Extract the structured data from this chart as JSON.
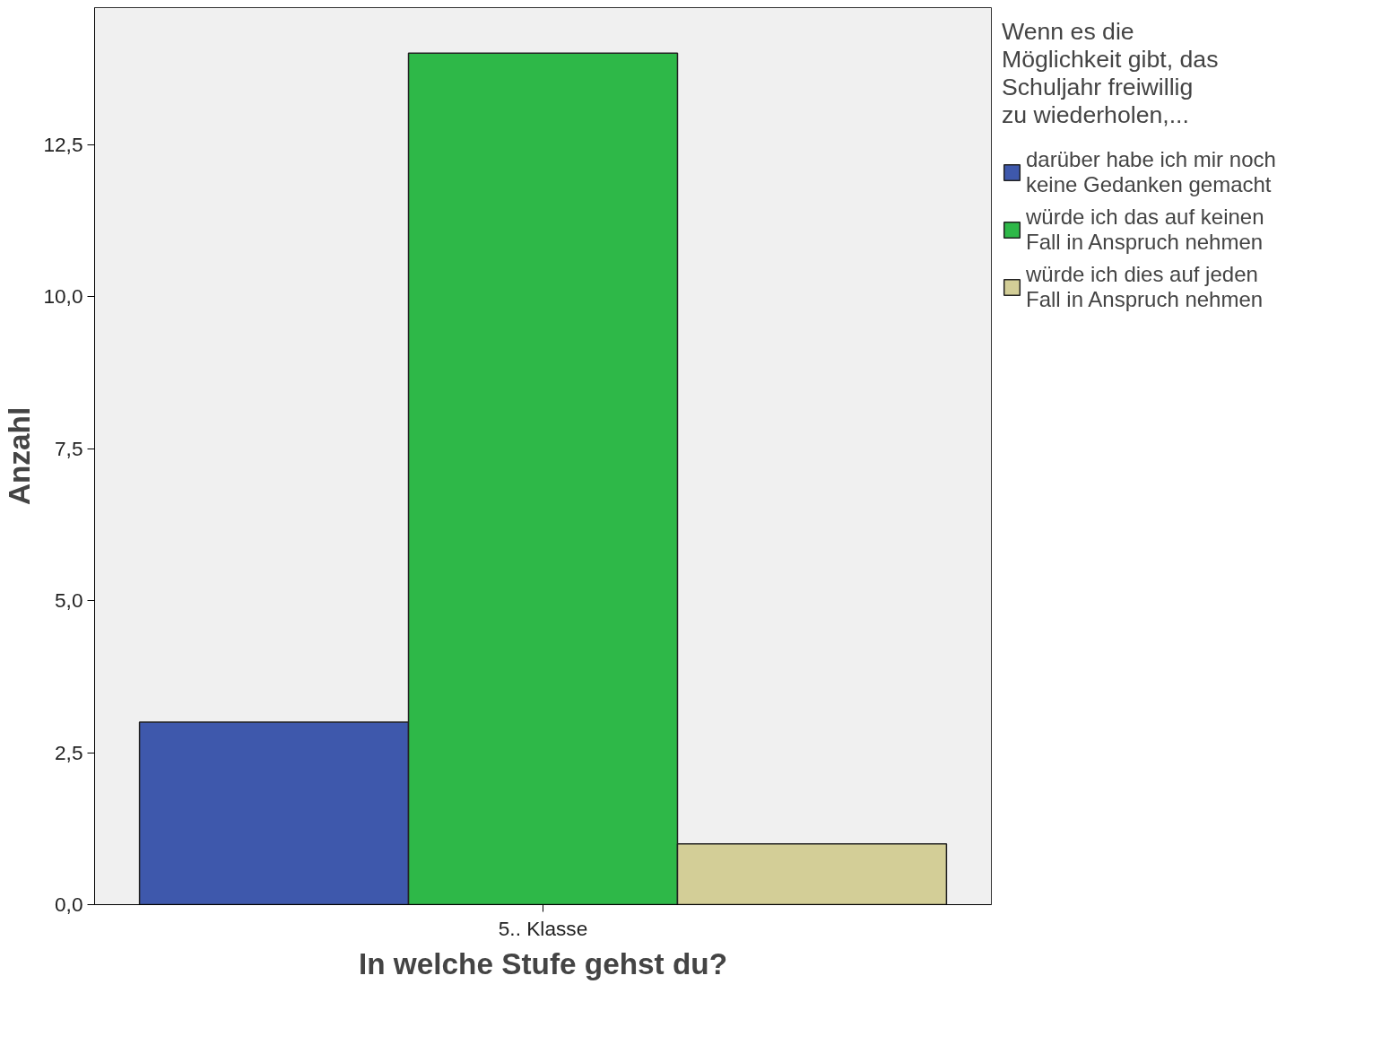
{
  "chart_data": {
    "type": "bar",
    "xlabel": "In welche Stufe gehst du?",
    "ylabel": "Anzahl",
    "legend_title": "Wenn es die Möglichkeit gibt, das Schuljahr freiwillig zu wiederholen,...",
    "categories": [
      "5.. Klasse"
    ],
    "series": [
      {
        "name": "darüber habe ich mir noch keine Gedanken gemacht",
        "color": "#3e58ac",
        "values": [
          3
        ]
      },
      {
        "name": "würde ich das auf keinen Fall in Anspruch nehmen",
        "color": "#2eb848",
        "values": [
          14
        ]
      },
      {
        "name": "würde ich dies auf jeden Fall in Anspruch nehmen",
        "color": "#d3ce97",
        "values": [
          1
        ]
      }
    ],
    "ylim": [
      0,
      14.75
    ],
    "yticks": [
      {
        "value": 0,
        "label": "0,0"
      },
      {
        "value": 2.5,
        "label": "2,5"
      },
      {
        "value": 5,
        "label": "5,0"
      },
      {
        "value": 7.5,
        "label": "7,5"
      },
      {
        "value": 10,
        "label": "10,0"
      },
      {
        "value": 12.5,
        "label": "12,5"
      }
    ],
    "grid": false,
    "legend": "right"
  }
}
